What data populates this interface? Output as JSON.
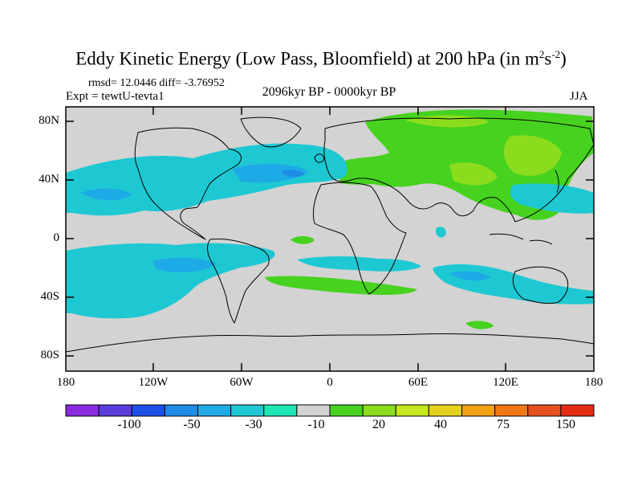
{
  "header": {
    "title_main": "Eddy Kinetic Energy (Low Pass, Bloomfield) at 200 hPa (in m",
    "title_sup1": "2",
    "title_mid": "s",
    "title_sup2": "-2",
    "title_end": ")",
    "stats": "rmsd= 12.0446 diff= -3.76952",
    "experiment": "Expt = tewtU-tevta1",
    "period": "2096kyr BP - 0000kyr BP",
    "season": "JJA"
  },
  "axes": {
    "y_ticks": [
      "80N",
      "40N",
      "0",
      "40S",
      "80S"
    ],
    "x_ticks": [
      "180",
      "120W",
      "60W",
      "0",
      "60E",
      "120E",
      "180"
    ]
  },
  "colorbar": {
    "colors": [
      "#8a2be2",
      "#5b3cdc",
      "#1e50e6",
      "#1e8ce6",
      "#1eaae6",
      "#1ec8d2",
      "#1ee6b4",
      "#d3d3d3",
      "#46d21e",
      "#8cdc1e",
      "#c8e61e",
      "#e6d21e",
      "#f0a014",
      "#f07814",
      "#e6501e",
      "#e62d14"
    ],
    "labels": [
      "-100",
      "-50",
      "-30",
      "-10",
      "20",
      "40",
      "75",
      "150"
    ]
  },
  "map_colors": {
    "neutral": "#d3d3d3",
    "neg_weak": "#1ee6b4",
    "neg_mid": "#1ec8d2",
    "neg_strong": "#1eaae6",
    "neg_deep": "#1e8ce6",
    "pos_weak": "#46d21e",
    "pos_mid": "#8cdc1e"
  }
}
